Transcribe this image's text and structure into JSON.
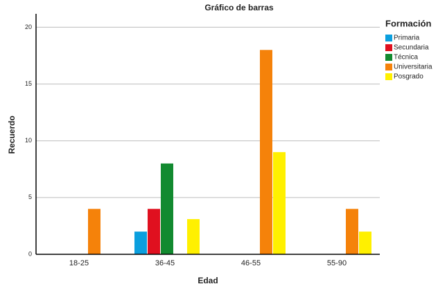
{
  "chart_data": {
    "type": "bar",
    "title": "Gráfico de barras",
    "x_label": "Edad",
    "y_label": "Recuerdo",
    "legend_title": "Formación",
    "categories": [
      "18-25",
      "36-45",
      "46-55",
      "55-90"
    ],
    "series": [
      {
        "name": "Primaria",
        "color": "#0b9fde",
        "values": [
          0,
          2,
          0,
          0
        ]
      },
      {
        "name": "Secundaria",
        "color": "#e0101f",
        "values": [
          0,
          4,
          0,
          0
        ]
      },
      {
        "name": "Técnica",
        "color": "#128a30",
        "values": [
          0,
          8,
          0,
          0
        ]
      },
      {
        "name": "Universitaria",
        "color": "#f5820a",
        "values": [
          4,
          0,
          18,
          4
        ]
      },
      {
        "name": "Posgrado",
        "color": "#fff000",
        "values": [
          0,
          3.1,
          9,
          2
        ]
      }
    ],
    "ylim": [
      0,
      21
    ],
    "yticks": [
      0,
      5,
      10,
      15,
      20
    ],
    "grid": true,
    "legend": "right"
  }
}
